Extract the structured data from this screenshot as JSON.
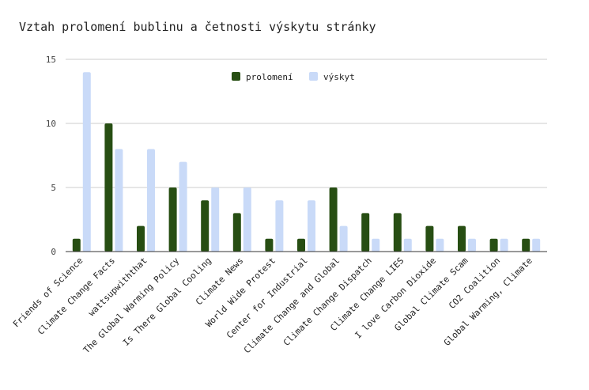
{
  "chart_data": {
    "type": "bar",
    "title": "Vztah prolomení bublinu a četnosti výskytu stránky",
    "xlabel": "",
    "ylabel": "",
    "ylim": [
      0,
      15
    ],
    "yticks": [
      0,
      5,
      10,
      15
    ],
    "grid": true,
    "legend_position": "top-center",
    "categories": [
      "Friends of Science",
      "Climate Change Facts",
      "wattsupwiththat",
      "The Global Warming Policy",
      "Is There Global Cooling",
      "Climate News",
      "World Wide Protest",
      "Center for Industrial",
      "Climate Change and Global",
      "Climate Change Dispatch",
      "Climate Change LIES",
      "I love Carbon Dioxide",
      "Global Climate Scam",
      "CO2 Coalition",
      "Global Warming, Climate"
    ],
    "series": [
      {
        "name": "prolomení",
        "color": "#274e13",
        "values": [
          1,
          10,
          2,
          5,
          4,
          3,
          1,
          1,
          5,
          3,
          3,
          2,
          2,
          1,
          1
        ]
      },
      {
        "name": "výskyt",
        "color": "#c9daf8",
        "values": [
          14,
          8,
          8,
          7,
          5,
          5,
          4,
          4,
          2,
          1,
          1,
          1,
          1,
          1,
          1
        ]
      }
    ]
  }
}
